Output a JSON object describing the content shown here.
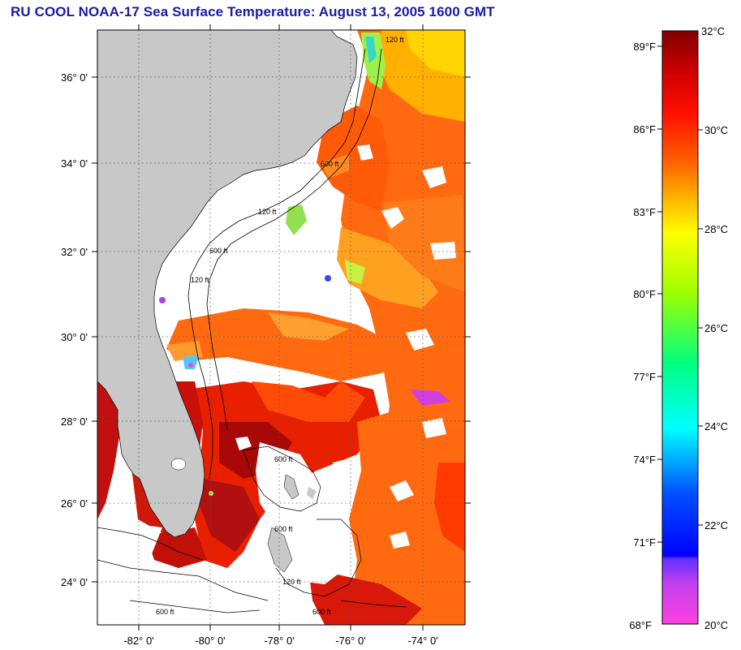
{
  "title": "RU COOL  NOAA-17  Sea Surface Temperature:  August 13, 2005 1600 GMT",
  "map": {
    "latitude_labels": [
      "36° 0'",
      "34° 0'",
      "32° 0'",
      "30° 0'",
      "28° 0'",
      "26° 0'",
      "24° 0'"
    ],
    "longitude_labels": [
      "-82° 0'",
      "-80° 0'",
      "-78° 0'",
      "-76° 0'",
      "-74° 0'"
    ],
    "contour_labels": [
      "120 ft",
      "600 ft",
      "120 ft",
      "600 ft",
      "120 ft",
      "600 ft",
      "600 ft",
      "120 ft",
      "600 ft",
      "600 ft"
    ],
    "colors": {
      "land": "#c8c8c8",
      "no_data": "#ffffff",
      "grid": "#555555"
    }
  },
  "colorbar": {
    "fahrenheit_labels": [
      "89°F",
      "86°F",
      "83°F",
      "80°F",
      "77°F",
      "74°F",
      "71°F",
      "68°F"
    ],
    "celsius_labels": [
      "32°C",
      "30°C",
      "28°C",
      "26°C",
      "24°C",
      "22°C",
      "20°C"
    ],
    "range_celsius": [
      20,
      32
    ],
    "scale": [
      "#ff40e0",
      "#8040ff",
      "#0000ff",
      "#00a0ff",
      "#00ffff",
      "#00ff80",
      "#80ff00",
      "#ffff00",
      "#ffa000",
      "#ff6000",
      "#ff0000",
      "#c00000",
      "#800000"
    ]
  }
}
